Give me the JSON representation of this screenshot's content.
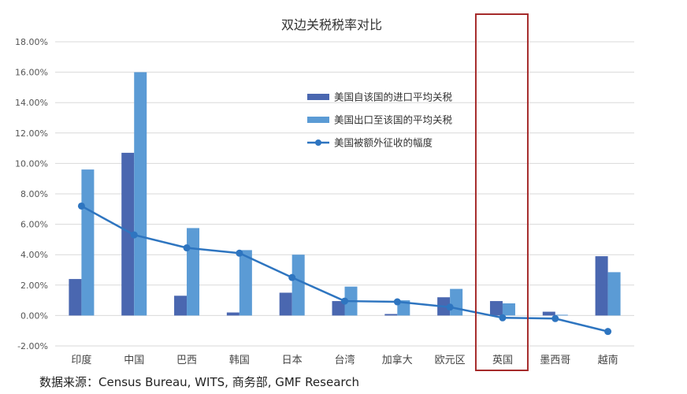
{
  "chart_data": {
    "type": "bar",
    "title": "双边关税税率对比",
    "categories": [
      "印度",
      "中国",
      "巴西",
      "韩国",
      "日本",
      "台湾",
      "加拿大",
      "欧元区",
      "英国",
      "墨西哥",
      "越南"
    ],
    "series": [
      {
        "name": "美国自该国的进口平均关税",
        "kind": "bar",
        "color": "#4a67b0",
        "values": [
          2.4,
          10.7,
          1.3,
          0.2,
          1.5,
          0.95,
          0.1,
          1.2,
          0.95,
          0.25,
          3.9
        ]
      },
      {
        "name": "美国出口至该国的平均关税",
        "kind": "bar",
        "color": "#5b9bd5",
        "values": [
          9.6,
          16.0,
          5.75,
          4.3,
          4.0,
          1.9,
          1.0,
          1.75,
          0.8,
          0.05,
          2.85
        ]
      },
      {
        "name": "美国被额外征收的幅度",
        "kind": "line",
        "color": "#2e75c0",
        "values": [
          7.2,
          5.3,
          4.45,
          4.1,
          2.5,
          0.95,
          0.9,
          0.55,
          -0.15,
          -0.2,
          -1.05
        ]
      }
    ],
    "ylim": [
      -2,
      18
    ],
    "yticks": [
      "-2.00%",
      "0.00%",
      "2.00%",
      "4.00%",
      "6.00%",
      "8.00%",
      "10.00%",
      "12.00%",
      "14.00%",
      "16.00%",
      "18.00%"
    ],
    "y_unit": "%",
    "grid": true,
    "legend_position": "center",
    "highlight_category": "英国",
    "highlight_color": "#a52a2a"
  },
  "source_text": "数据来源：Census Bureau, WITS, 商务部,  GMF Research"
}
